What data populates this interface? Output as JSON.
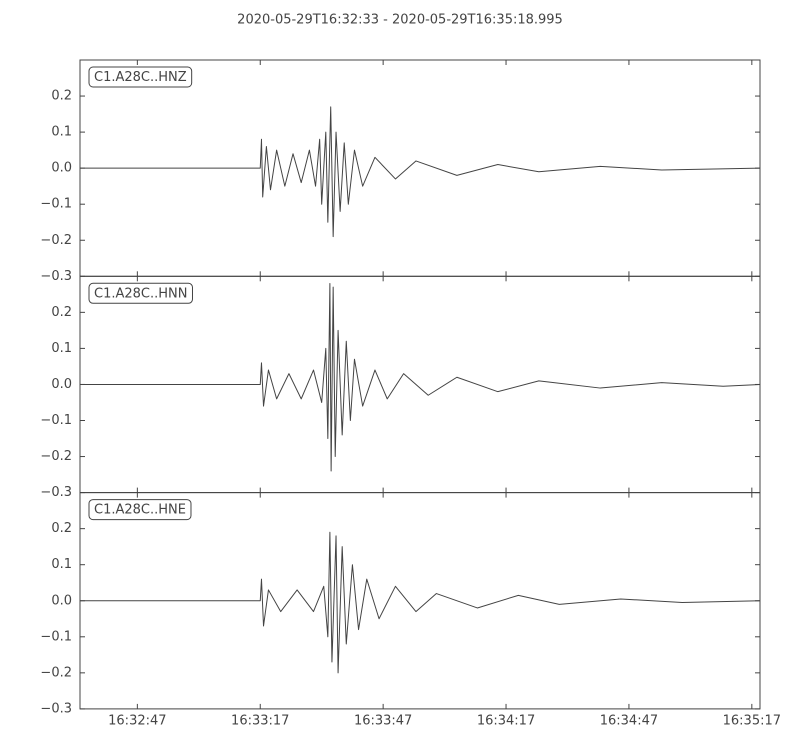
{
  "chart_data": [
    {
      "type": "line",
      "title": "2020-05-29T16:32:33  -  2020-05-29T16:35:18.995",
      "annotation": "C1.A28C..HNZ",
      "color": "#444444",
      "xlim": [
        "16:32:33",
        "16:35:18.995"
      ],
      "xticks": [
        "16:32:47",
        "16:33:17",
        "16:33:47",
        "16:34:17",
        "16:34:47",
        "16:35:17"
      ],
      "ylim": [
        -0.3,
        0.3
      ],
      "yticks": [
        {
          "value": -0.3,
          "label": "−0.3"
        },
        {
          "value": -0.2,
          "label": "−0.2"
        },
        {
          "value": -0.1,
          "label": "−0.1"
        },
        {
          "value": 0,
          "label": "0.0"
        },
        0.1,
        0.2
      ],
      "x": [
        "16:32:33",
        "16:33:17",
        "16:33:17.3",
        "16:33:17.6",
        "16:33:18.5",
        "16:33:19.5",
        "16:33:21",
        "16:33:23",
        "16:33:25",
        "16:33:27",
        "16:33:29",
        "16:33:30.5",
        "16:33:31.5",
        "16:33:32",
        "16:33:33",
        "16:33:33.5",
        "16:33:34.2",
        "16:33:34.8",
        "16:33:35.5",
        "16:33:36.5",
        "16:33:37.5",
        "16:33:38.5",
        "16:33:40",
        "16:33:42",
        "16:33:45",
        "16:33:50",
        "16:33:55",
        "16:34:05",
        "16:34:15",
        "16:34:25",
        "16:34:40",
        "16:34:55",
        "16:35:18.995"
      ],
      "values": [
        0,
        0,
        0.08,
        -0.08,
        0.06,
        -0.06,
        0.05,
        -0.05,
        0.04,
        -0.04,
        0.05,
        -0.05,
        0.08,
        -0.1,
        0.1,
        -0.15,
        0.17,
        -0.19,
        0.1,
        -0.12,
        0.07,
        -0.1,
        0.05,
        -0.05,
        0.03,
        -0.03,
        0.02,
        -0.02,
        0.01,
        -0.01,
        0.005,
        -0.005,
        0
      ]
    },
    {
      "type": "line",
      "annotation": "C1.A28C..HNN",
      "color": "#444444",
      "xlim": [
        "16:32:33",
        "16:35:18.995"
      ],
      "xticks": [
        "16:32:47",
        "16:33:17",
        "16:33:47",
        "16:34:17",
        "16:34:47",
        "16:35:17"
      ],
      "ylim": [
        -0.3,
        0.3
      ],
      "yticks": [
        {
          "value": -0.3,
          "label": "−0.3"
        },
        {
          "value": -0.2,
          "label": "−0.2"
        },
        {
          "value": -0.1,
          "label": "−0.1"
        },
        {
          "value": 0,
          "label": "0.0"
        },
        0.1,
        0.2
      ],
      "x": [
        "16:32:33",
        "16:33:17",
        "16:33:17.3",
        "16:33:17.8",
        "16:33:19",
        "16:33:21",
        "16:33:24",
        "16:33:27",
        "16:33:30",
        "16:33:32",
        "16:33:33",
        "16:33:33.5",
        "16:33:34",
        "16:33:34.3",
        "16:33:34.8",
        "16:33:35.3",
        "16:33:36",
        "16:33:37",
        "16:33:38",
        "16:33:39",
        "16:33:40",
        "16:33:42",
        "16:33:45",
        "16:33:48",
        "16:33:52",
        "16:33:58",
        "16:34:05",
        "16:34:15",
        "16:34:25",
        "16:34:40",
        "16:34:55",
        "16:35:10",
        "16:35:18.995"
      ],
      "values": [
        0,
        0,
        0.06,
        -0.06,
        0.04,
        -0.04,
        0.03,
        -0.04,
        0.04,
        -0.05,
        0.1,
        -0.15,
        0.28,
        -0.24,
        0.27,
        -0.2,
        0.15,
        -0.14,
        0.12,
        -0.1,
        0.07,
        -0.06,
        0.04,
        -0.04,
        0.03,
        -0.03,
        0.02,
        -0.02,
        0.01,
        -0.01,
        0.005,
        -0.005,
        0
      ]
    },
    {
      "type": "line",
      "annotation": "C1.A28C..HNE",
      "color": "#444444",
      "xlim": [
        "16:32:33",
        "16:35:18.995"
      ],
      "xticks": [
        "16:32:47",
        "16:33:17",
        "16:33:47",
        "16:34:17",
        "16:34:47",
        "16:35:17"
      ],
      "ylim": [
        -0.3,
        0.3
      ],
      "yticks": [
        {
          "value": -0.3,
          "label": "−0.3"
        },
        {
          "value": -0.2,
          "label": "−0.2"
        },
        {
          "value": -0.1,
          "label": "−0.1"
        },
        {
          "value": 0,
          "label": "0.0"
        },
        0.1,
        0.2
      ],
      "x": [
        "16:32:33",
        "16:33:17",
        "16:33:17.3",
        "16:33:17.8",
        "16:33:19",
        "16:33:22",
        "16:33:26",
        "16:33:30",
        "16:33:32.5",
        "16:33:33.5",
        "16:33:34",
        "16:33:34.5",
        "16:33:35.5",
        "16:33:36",
        "16:33:37",
        "16:33:38",
        "16:33:39.5",
        "16:33:41",
        "16:33:43",
        "16:33:46",
        "16:33:50",
        "16:33:55",
        "16:34:00",
        "16:34:10",
        "16:34:20",
        "16:34:30",
        "16:34:45",
        "16:35:00",
        "16:35:18.995"
      ],
      "values": [
        0,
        0,
        0.06,
        -0.07,
        0.03,
        -0.03,
        0.03,
        -0.03,
        0.04,
        -0.1,
        0.19,
        -0.17,
        0.18,
        -0.2,
        0.15,
        -0.12,
        0.1,
        -0.08,
        0.06,
        -0.05,
        0.04,
        -0.03,
        0.02,
        -0.02,
        0.015,
        -0.01,
        0.005,
        -0.005,
        0
      ]
    }
  ]
}
